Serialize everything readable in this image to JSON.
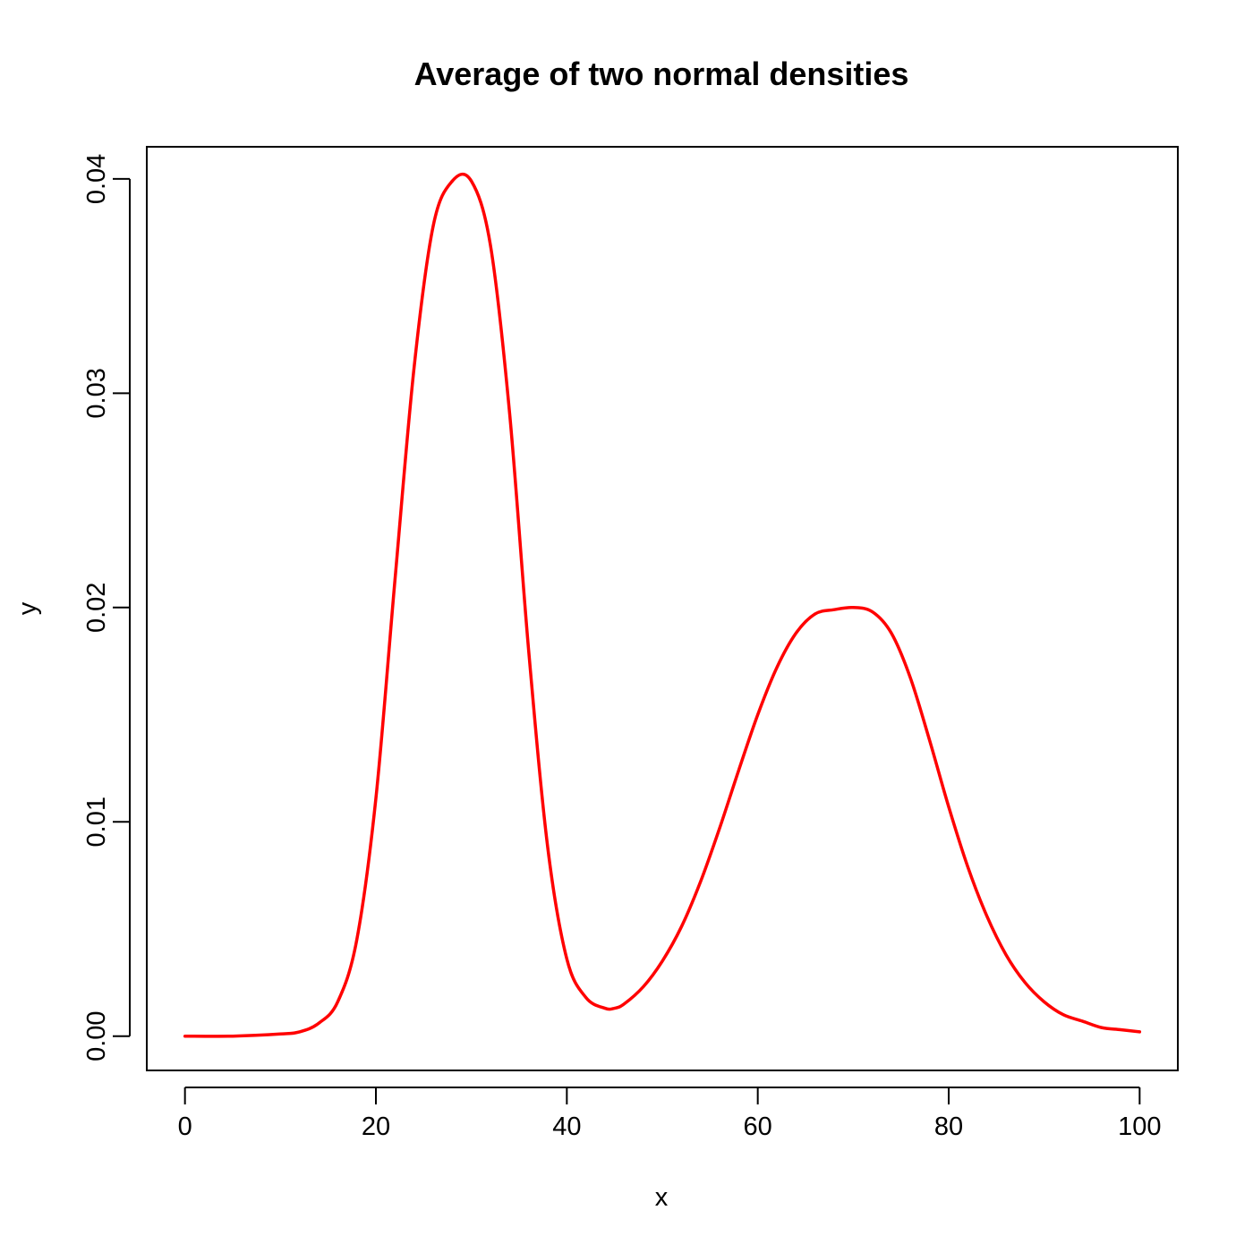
{
  "chart_data": {
    "type": "line",
    "title": "Average of two normal densities",
    "xlabel": "x",
    "ylabel": "y",
    "xlim": [
      -4,
      104
    ],
    "ylim": [
      -0.0016,
      0.0415
    ],
    "x_ticks": [
      0,
      20,
      40,
      60,
      80,
      100
    ],
    "y_ticks": [
      0.0,
      0.01,
      0.02,
      0.03,
      0.04
    ],
    "x_tick_labels": [
      "0",
      "20",
      "40",
      "60",
      "80",
      "100"
    ],
    "y_tick_labels": [
      "0.00",
      "0.01",
      "0.02",
      "0.03",
      "0.04"
    ],
    "grid": false,
    "legend": "none",
    "series": [
      {
        "color": "#ff0000",
        "x": [
          0,
          5,
          10,
          12,
          14,
          16,
          18,
          20,
          22,
          24,
          26,
          28,
          30,
          32,
          34,
          36,
          38,
          40,
          42,
          44,
          45,
          46,
          48,
          50,
          52,
          54,
          56,
          58,
          60,
          62,
          64,
          66,
          68,
          70,
          72,
          74,
          76,
          78,
          80,
          82,
          84,
          86,
          88,
          90,
          92,
          94,
          96,
          98,
          100
        ],
        "values": [
          0.0,
          0.0,
          0.0001,
          0.0002,
          0.0006,
          0.0016,
          0.0045,
          0.0111,
          0.0213,
          0.0312,
          0.0378,
          0.0399,
          0.0399,
          0.0369,
          0.0291,
          0.018,
          0.0088,
          0.0036,
          0.0018,
          0.0013,
          0.0013,
          0.0015,
          0.0023,
          0.0035,
          0.0051,
          0.0072,
          0.0097,
          0.0124,
          0.015,
          0.0172,
          0.0188,
          0.0197,
          0.0199,
          0.02,
          0.0198,
          0.0188,
          0.0167,
          0.0138,
          0.0107,
          0.0079,
          0.0056,
          0.0038,
          0.0025,
          0.0016,
          0.001,
          0.0007,
          0.0004,
          0.0003,
          0.0002
        ]
      }
    ]
  }
}
